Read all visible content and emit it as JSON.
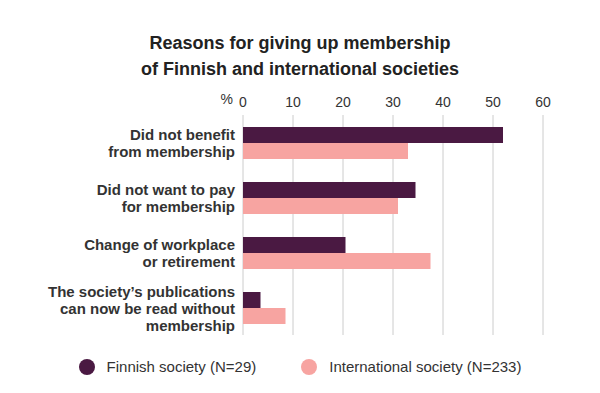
{
  "chart_data": {
    "type": "bar",
    "orientation": "horizontal",
    "title": "Reasons for giving up membership of Finnish and international societies",
    "x_label": "%",
    "categories": [
      "Did not benefit from membership",
      "Did not want to pay for membership",
      "Change of workplace or retirement",
      "The society’s publications can now be read without membership"
    ],
    "series": [
      {
        "name": "Finnish society (N=29)",
        "color": "#4a1942",
        "values": [
          52,
          34.5,
          20.5,
          3.5
        ]
      },
      {
        "name": "International society (N=233)",
        "color": "#f7a4a1",
        "values": [
          33,
          31,
          37.5,
          8.5
        ]
      }
    ],
    "xlim": [
      0,
      60
    ],
    "xticks": [
      0,
      10,
      20,
      30,
      40,
      50,
      60
    ],
    "grid": true,
    "legend": "bottom"
  }
}
